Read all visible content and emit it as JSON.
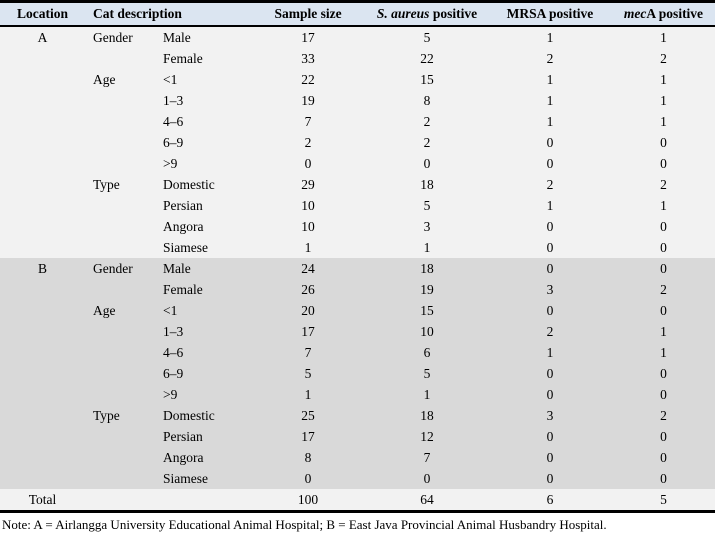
{
  "table": {
    "columns": {
      "location": "Location",
      "cat_description": "Cat description",
      "sample_size": "Sample size",
      "s_aureus_italic": "S. aureus",
      "s_aureus_rest": " positive",
      "mrsa": "MRSA positive",
      "meca_italic": "mec",
      "meca_rest": "A positive"
    },
    "rows": [
      {
        "section": "A",
        "location": "A",
        "category": "Gender",
        "sub": "Male",
        "values": [
          "17",
          "5",
          "1",
          "1"
        ]
      },
      {
        "section": "A",
        "location": "",
        "category": "",
        "sub": "Female",
        "values": [
          "33",
          "22",
          "2",
          "2"
        ]
      },
      {
        "section": "A",
        "location": "",
        "category": "Age",
        "sub": "<1",
        "values": [
          "22",
          "15",
          "1",
          "1"
        ]
      },
      {
        "section": "A",
        "location": "",
        "category": "",
        "sub": "1–3",
        "values": [
          "19",
          "8",
          "1",
          "1"
        ]
      },
      {
        "section": "A",
        "location": "",
        "category": "",
        "sub": "4–6",
        "values": [
          "7",
          "2",
          "1",
          "1"
        ]
      },
      {
        "section": "A",
        "location": "",
        "category": "",
        "sub": "6–9",
        "values": [
          "2",
          "2",
          "0",
          "0"
        ]
      },
      {
        "section": "A",
        "location": "",
        "category": "",
        "sub": ">9",
        "values": [
          "0",
          "0",
          "0",
          "0"
        ]
      },
      {
        "section": "A",
        "location": "",
        "category": "Type",
        "sub": "Domestic",
        "values": [
          "29",
          "18",
          "2",
          "2"
        ]
      },
      {
        "section": "A",
        "location": "",
        "category": "",
        "sub": "Persian",
        "values": [
          "10",
          "5",
          "1",
          "1"
        ]
      },
      {
        "section": "A",
        "location": "",
        "category": "",
        "sub": "Angora",
        "values": [
          "10",
          "3",
          "0",
          "0"
        ]
      },
      {
        "section": "A",
        "location": "",
        "category": "",
        "sub": "Siamese",
        "values": [
          "1",
          "1",
          "0",
          "0"
        ]
      },
      {
        "section": "B",
        "location": "B",
        "category": "Gender",
        "sub": "Male",
        "values": [
          "24",
          "18",
          "0",
          "0"
        ]
      },
      {
        "section": "B",
        "location": "",
        "category": "",
        "sub": "Female",
        "values": [
          "26",
          "19",
          "3",
          "2"
        ]
      },
      {
        "section": "B",
        "location": "",
        "category": "Age",
        "sub": "<1",
        "values": [
          "20",
          "15",
          "0",
          "0"
        ]
      },
      {
        "section": "B",
        "location": "",
        "category": "",
        "sub": "1–3",
        "values": [
          "17",
          "10",
          "2",
          "1"
        ]
      },
      {
        "section": "B",
        "location": "",
        "category": "",
        "sub": "4–6",
        "values": [
          "7",
          "6",
          "1",
          "1"
        ]
      },
      {
        "section": "B",
        "location": "",
        "category": "",
        "sub": "6–9",
        "values": [
          "5",
          "5",
          "0",
          "0"
        ]
      },
      {
        "section": "B",
        "location": "",
        "category": "",
        "sub": ">9",
        "values": [
          "1",
          "1",
          "0",
          "0"
        ]
      },
      {
        "section": "B",
        "location": "",
        "category": "Type",
        "sub": "Domestic",
        "values": [
          "25",
          "18",
          "3",
          "2"
        ]
      },
      {
        "section": "B",
        "location": "",
        "category": "",
        "sub": "Persian",
        "values": [
          "17",
          "12",
          "0",
          "0"
        ]
      },
      {
        "section": "B",
        "location": "",
        "category": "",
        "sub": "Angora",
        "values": [
          "8",
          "7",
          "0",
          "0"
        ]
      },
      {
        "section": "B",
        "location": "",
        "category": "",
        "sub": "Siamese",
        "values": [
          "0",
          "0",
          "0",
          "0"
        ]
      },
      {
        "section": "total",
        "location": "Total",
        "category": "",
        "sub": "",
        "values": [
          "100",
          "64",
          "6",
          "5"
        ]
      }
    ]
  },
  "note": "Note: A = Airlangga University Educational Animal Hospital; B = East Java Provincial Animal Husbandry Hospital.",
  "colors": {
    "header_bg": "#dbe5f1",
    "section_a_bg": "#f2f2f2",
    "section_b_bg": "#d9d9d9",
    "total_bg": "#f2f2f2",
    "border": "#000000"
  }
}
